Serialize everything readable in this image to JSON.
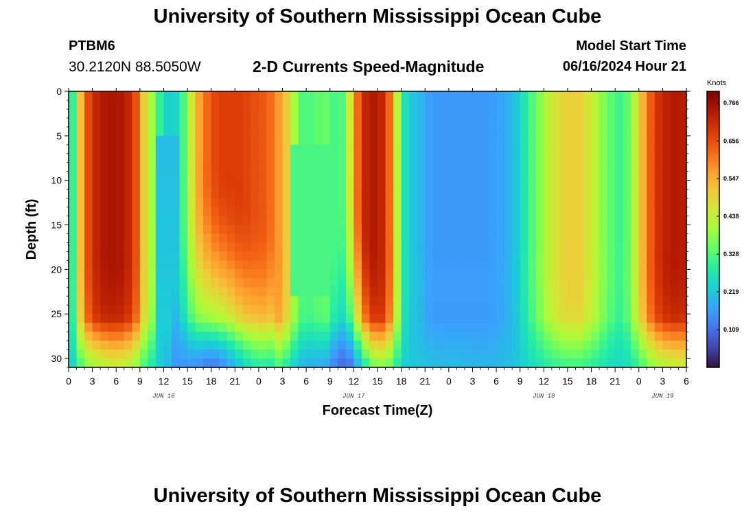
{
  "header": {
    "title": "University of Southern Mississippi Ocean Cube",
    "station": "PTBM6",
    "coords": "30.2120N  88.5050W",
    "subtitle": "2-D Currents Speed-Magnitude",
    "start_label": "Model Start Time",
    "start_value": "06/16/2024 Hour 21"
  },
  "footer": {
    "title": "University of Southern Mississippi Ocean Cube"
  },
  "chart_data": {
    "type": "heatmap",
    "title": "2-D Currents Speed-Magnitude",
    "xlabel": "Forecast Time(Z)",
    "ylabel": "Depth (ft)",
    "x_range_hours": [
      0,
      78
    ],
    "y_range_ft": [
      0,
      31
    ],
    "x_ticks": [
      "0",
      "3",
      "6",
      "9",
      "12",
      "15",
      "18",
      "21",
      "0",
      "3",
      "6",
      "9",
      "12",
      "15",
      "18",
      "21",
      "0",
      "3",
      "6",
      "9",
      "12",
      "15",
      "18",
      "21",
      "0",
      "3",
      "6"
    ],
    "y_ticks": [
      "0",
      "5",
      "10",
      "15",
      "20",
      "25",
      "30"
    ],
    "date_labels": [
      {
        "hour": 12,
        "label": "JUN 16"
      },
      {
        "hour": 36,
        "label": "JUN 17"
      },
      {
        "hour": 60,
        "label": "JUN 18"
      },
      {
        "hour": 75,
        "label": "JUN 19"
      }
    ],
    "colorbar": {
      "unit": "Knots",
      "ticks": [
        "0.766",
        "0.656",
        "0.547",
        "0.438",
        "0.328",
        "0.219",
        "0.109"
      ],
      "min": 0.0,
      "max": 0.8,
      "colors": [
        "#30123b",
        "#4145ab",
        "#4675ed",
        "#39a2fc",
        "#1bcfd4",
        "#24eca6",
        "#61fc6c",
        "#a4fc3b",
        "#d1e834",
        "#f3c63a",
        "#fe9b2d",
        "#f36315",
        "#d93806",
        "#b11901",
        "#7a0403"
      ]
    },
    "profiles": {
      "surface_hours": [
        0,
        0.5,
        1,
        1.5,
        2,
        3,
        4,
        5,
        6,
        7,
        8,
        9,
        9.5,
        10,
        10.5,
        11,
        11.5,
        12,
        13,
        14,
        15,
        15.5,
        16,
        17,
        18,
        19,
        20,
        21,
        22,
        23,
        24,
        25,
        26,
        27,
        28,
        28.5,
        29,
        29.5,
        30,
        31,
        32,
        33,
        34,
        35,
        36,
        37,
        38,
        39,
        40,
        41,
        42,
        43,
        44,
        45,
        46,
        47,
        48,
        49,
        50,
        51,
        52,
        53,
        54,
        55,
        56,
        57,
        58,
        59,
        60,
        61,
        62,
        63,
        64,
        64.5,
        65,
        66,
        67,
        68,
        69,
        70,
        71,
        72,
        73,
        74,
        75,
        76,
        77,
        78
      ],
      "surface_knots": [
        0.28,
        0.3,
        0.4,
        0.52,
        0.62,
        0.7,
        0.74,
        0.75,
        0.75,
        0.74,
        0.7,
        0.6,
        0.5,
        0.45,
        0.4,
        0.36,
        0.3,
        0.25,
        0.22,
        0.26,
        0.38,
        0.45,
        0.52,
        0.6,
        0.65,
        0.68,
        0.68,
        0.68,
        0.68,
        0.66,
        0.65,
        0.64,
        0.6,
        0.55,
        0.47,
        0.4,
        0.35,
        0.33,
        0.32,
        0.33,
        0.35,
        0.34,
        0.3,
        0.35,
        0.55,
        0.7,
        0.74,
        0.74,
        0.7,
        0.55,
        0.3,
        0.22,
        0.21,
        0.18,
        0.16,
        0.16,
        0.16,
        0.16,
        0.16,
        0.16,
        0.16,
        0.16,
        0.17,
        0.18,
        0.2,
        0.24,
        0.3,
        0.35,
        0.4,
        0.45,
        0.48,
        0.5,
        0.5,
        0.5,
        0.48,
        0.45,
        0.4,
        0.35,
        0.32,
        0.3,
        0.38,
        0.48,
        0.6,
        0.68,
        0.72,
        0.74,
        0.74,
        0.73
      ],
      "bottom_knots_at_31ft": {
        "0": 0.22,
        "4": 0.25,
        "6": 0.3,
        "13": 0.18,
        "18": 0.05,
        "24": 0.22,
        "35": 0.04,
        "39": 0.2,
        "46": 0.25,
        "52": 0.23,
        "72": 0.22,
        "77": 0.3
      }
    }
  }
}
